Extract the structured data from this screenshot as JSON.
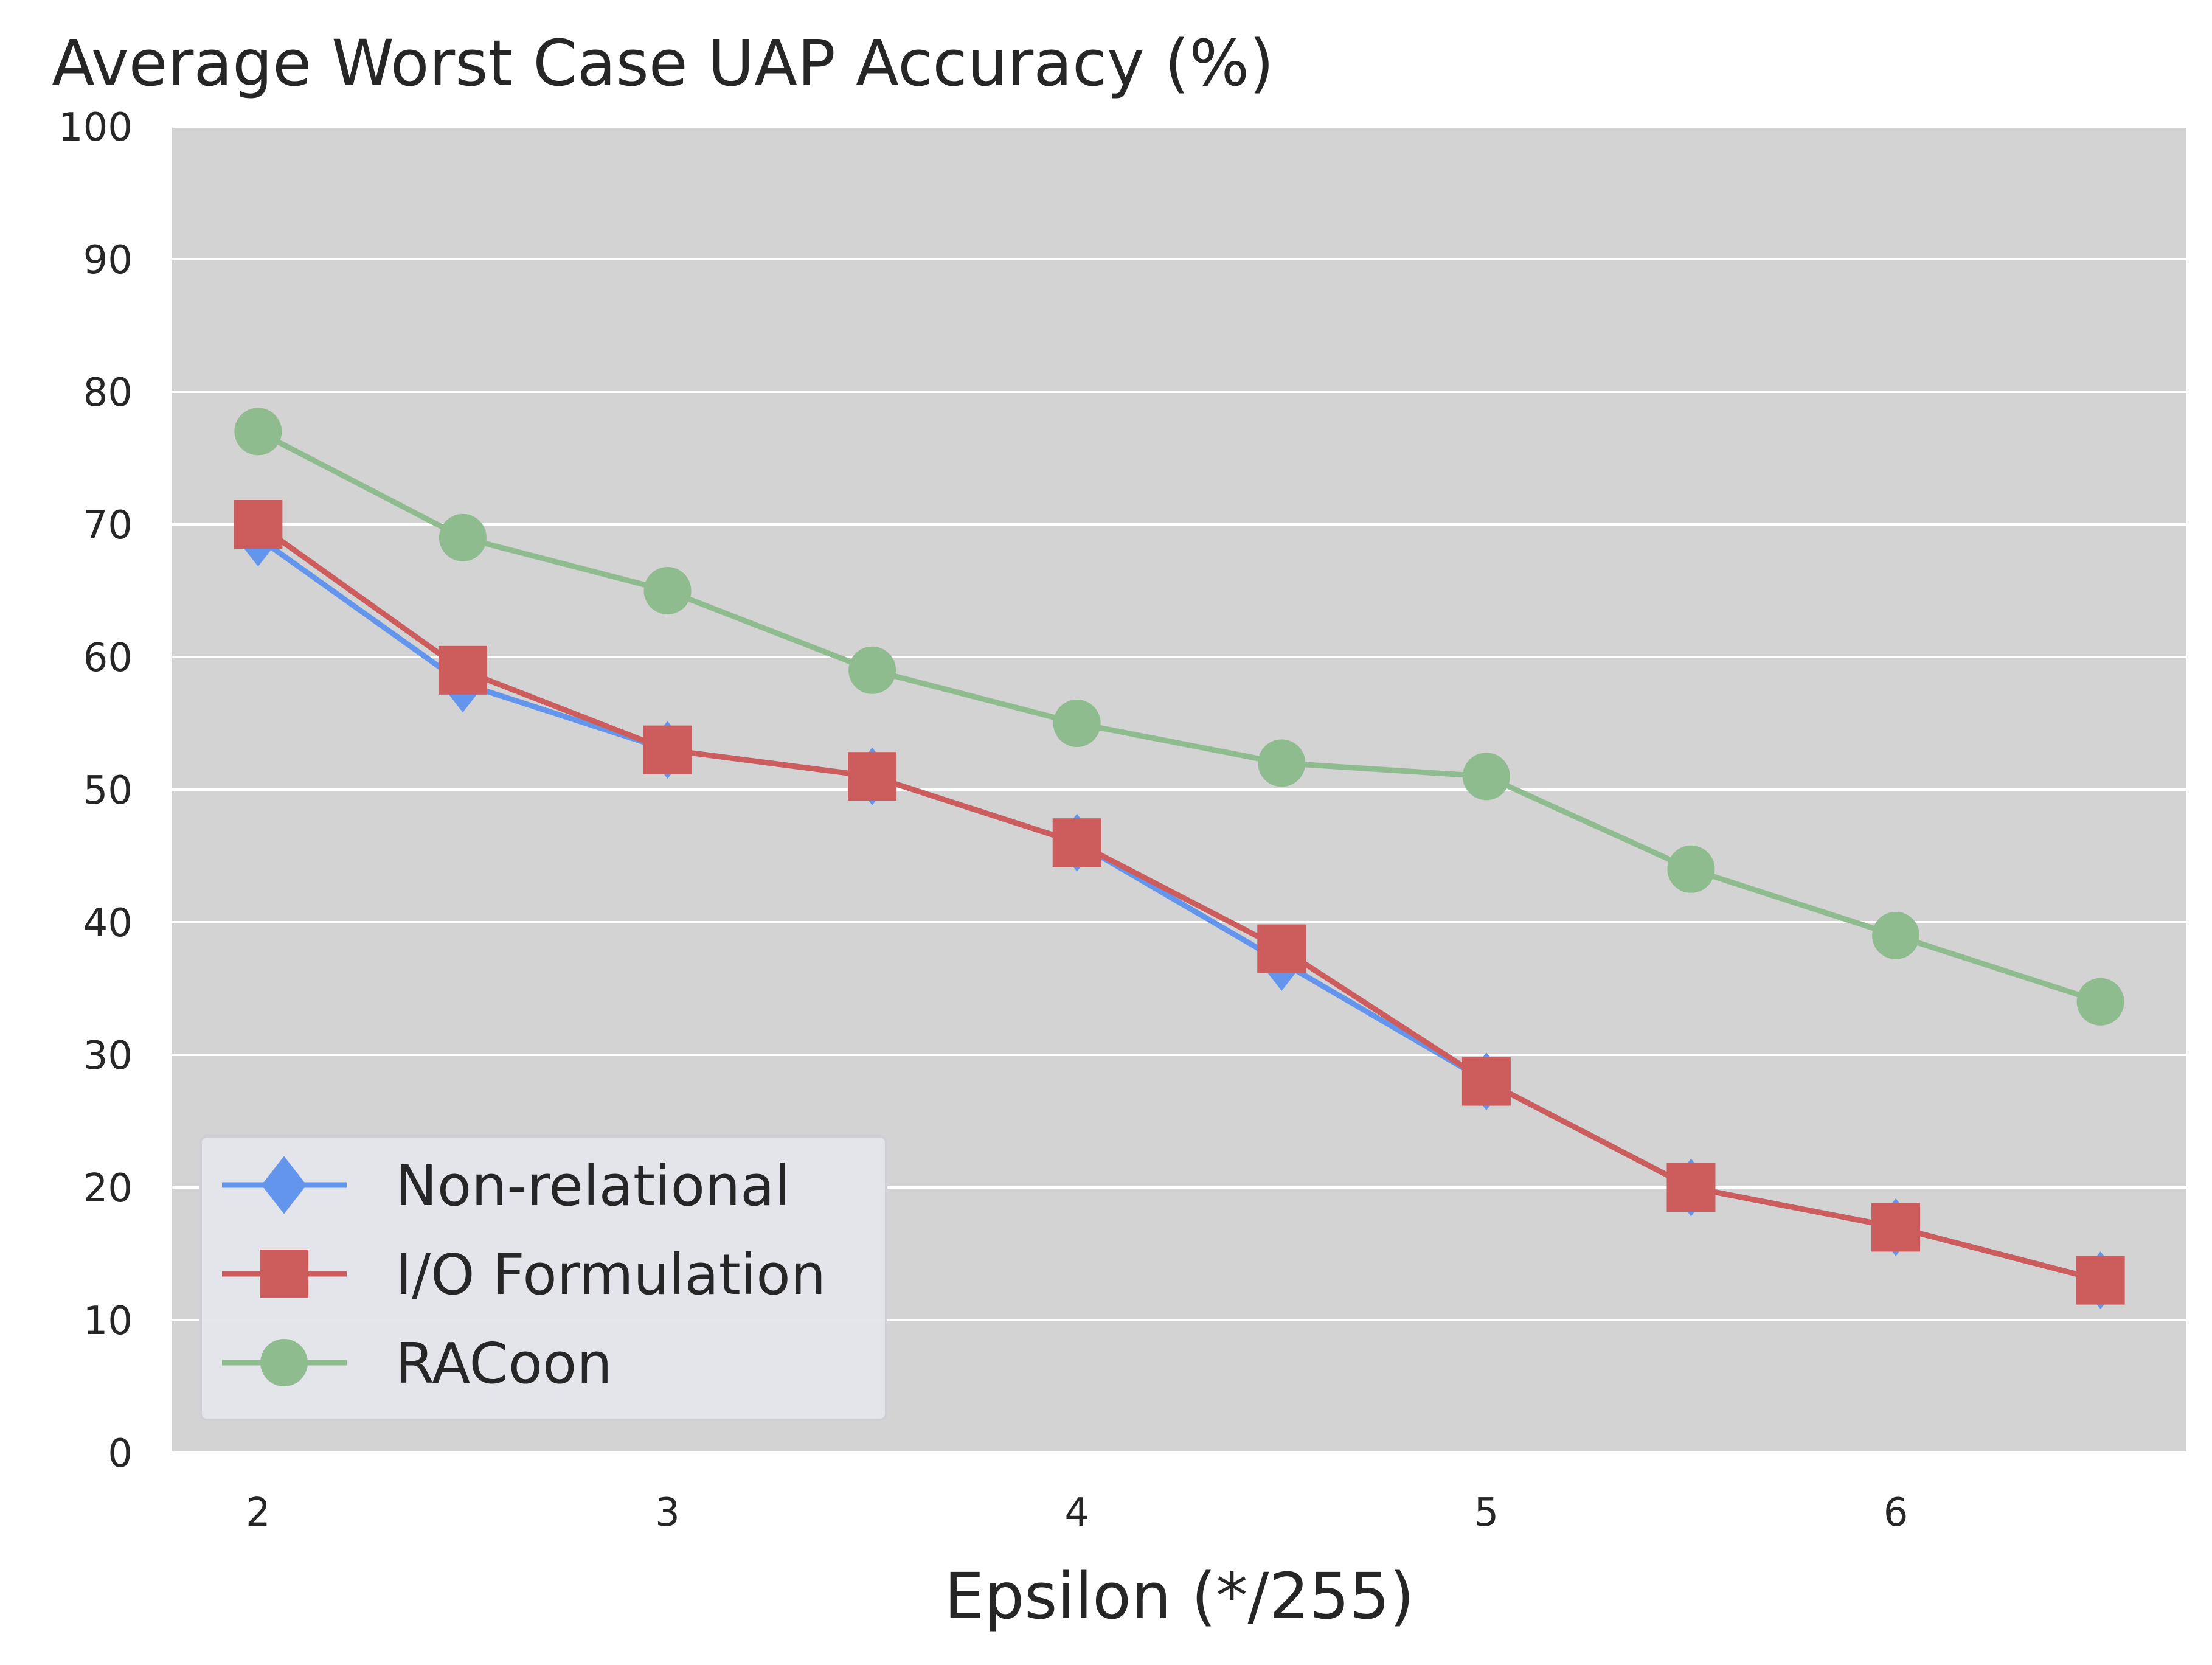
{
  "chart_data": {
    "type": "line",
    "title": "Average Worst Case UAP Accuracy (%)",
    "xlabel": "Epsilon (*/255)",
    "ylabel": "",
    "x": [
      2,
      2.5,
      3,
      3.5,
      4,
      4.5,
      5,
      5.5,
      6,
      6.5
    ],
    "xlim": [
      1.79,
      6.71
    ],
    "ylim": [
      0,
      100
    ],
    "xticks": [
      2,
      3,
      4,
      5,
      6
    ],
    "yticks": [
      0,
      10,
      20,
      30,
      40,
      50,
      60,
      70,
      80,
      90,
      100
    ],
    "grid": "horizontal",
    "legend_position": "lower-left",
    "series": [
      {
        "name": "Non-relational",
        "color": "#6495ED",
        "marker": "diamond",
        "values": [
          69,
          58,
          53,
          51,
          46,
          37,
          28,
          20,
          17,
          13
        ]
      },
      {
        "name": "I/O Formulation",
        "color": "#CD5C5C",
        "marker": "square",
        "values": [
          70,
          59,
          53,
          51,
          46,
          38,
          28,
          20,
          17,
          13
        ]
      },
      {
        "name": "RACoon",
        "color": "#8FBC8F",
        "marker": "circle",
        "values": [
          77,
          69,
          65,
          59,
          55,
          52,
          51,
          44,
          39,
          34
        ]
      }
    ],
    "colors": {
      "plot_background": "#D3D3D3",
      "grid": "#FFFFFF",
      "legend_background": "#E5E5EC",
      "text": "#262626"
    }
  }
}
